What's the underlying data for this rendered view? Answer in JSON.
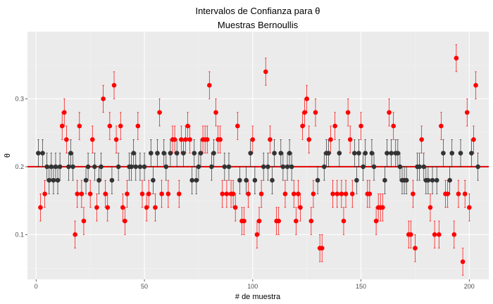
{
  "chart_data": {
    "type": "scatter",
    "title": "Intervalos de Confianza para  θ",
    "subtitle": "Muestras Bernoullis",
    "xlabel": "# de muestra",
    "ylabel": "θ",
    "xlim": [
      -4,
      209
    ],
    "ylim": [
      0.034,
      0.399
    ],
    "x_ticks": [
      0,
      50,
      100,
      150,
      200
    ],
    "x_tick_labels": [
      "0",
      "50",
      "100",
      "150",
      "200"
    ],
    "y_ticks": [
      0.1,
      0.2,
      0.3
    ],
    "y_tick_labels": [
      "0.1",
      "0.2",
      "0.3"
    ],
    "reference_line": 0.2,
    "interval_half_width": 0.02,
    "grid": true,
    "legend": "none",
    "colors": {
      "panel": "#ebebeb",
      "grid_major": "#ffffff",
      "grid_minor": "#f3f3f3",
      "hit": "#333333",
      "miss": "#ff0000",
      "reference": "#e00000"
    },
    "estimates": [
      0.22,
      0.14,
      0.22,
      0.16,
      0.2,
      0.18,
      0.2,
      0.18,
      0.2,
      0.18,
      0.2,
      0.26,
      0.28,
      0.24,
      0.2,
      0.22,
      0.2,
      0.1,
      0.16,
      0.26,
      0.16,
      0.12,
      0.18,
      0.2,
      0.16,
      0.24,
      0.2,
      0.14,
      0.18,
      0.2,
      0.3,
      0.16,
      0.14,
      0.26,
      0.18,
      0.32,
      0.24,
      0.2,
      0.26,
      0.14,
      0.12,
      0.16,
      0.2,
      0.2,
      0.22,
      0.2,
      0.26,
      0.2,
      0.16,
      0.2,
      0.14,
      0.16,
      0.22,
      0.18,
      0.14,
      0.22,
      0.28,
      0.16,
      0.22,
      0.2,
      0.16,
      0.22,
      0.24,
      0.24,
      0.22,
      0.16,
      0.24,
      0.22,
      0.24,
      0.26,
      0.24,
      0.18,
      0.22,
      0.18,
      0.2,
      0.22,
      0.24,
      0.24,
      0.24,
      0.32,
      0.2,
      0.22,
      0.28,
      0.24,
      0.24,
      0.16,
      0.2,
      0.16,
      0.2,
      0.16,
      0.16,
      0.14,
      0.26,
      0.18,
      0.12,
      0.12,
      0.18,
      0.16,
      0.22,
      0.24,
      0.18,
      0.1,
      0.12,
      0.16,
      0.2,
      0.34,
      0.2,
      0.24,
      0.18,
      0.22,
      0.12,
      0.12,
      0.22,
      0.2,
      0.16,
      0.2,
      0.22,
      0.2,
      0.16,
      0.12,
      0.16,
      0.14,
      0.26,
      0.28,
      0.3,
      0.24,
      0.12,
      0.16,
      0.28,
      0.18,
      0.08,
      0.08,
      0.2,
      0.22,
      0.22,
      0.24,
      0.16,
      0.26,
      0.16,
      0.22,
      0.16,
      0.12,
      0.16,
      0.28,
      0.24,
      0.16,
      0.22,
      0.18,
      0.22,
      0.26,
      0.2,
      0.22,
      0.16,
      0.16,
      0.22,
      0.2,
      0.12,
      0.14,
      0.14,
      0.14,
      0.18,
      0.22,
      0.28,
      0.22,
      0.26,
      0.22,
      0.22,
      0.2,
      0.18,
      0.18,
      0.18,
      0.1,
      0.1,
      0.16,
      0.08,
      0.2,
      0.2,
      0.24,
      0.2,
      0.18,
      0.18,
      0.14,
      0.18,
      0.1,
      0.18,
      0.1,
      0.26,
      0.22,
      0.16,
      0.16,
      0.18,
      0.22,
      0.1,
      0.36,
      0.16,
      0.22,
      0.06,
      0.16,
      0.28,
      0.14,
      0.22,
      0.24,
      0.32,
      0.2
    ]
  }
}
